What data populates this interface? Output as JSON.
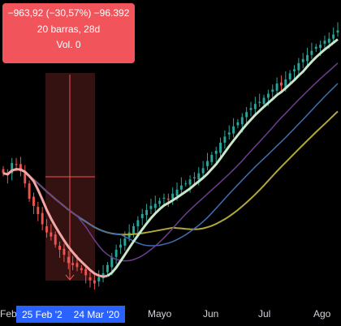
{
  "measure": {
    "line1": "−963,92 (−30,57%) −96.392",
    "line2": "20 barras, 28d",
    "line3": "Vol. 0"
  },
  "x_axis": {
    "labels": [
      "Feb",
      "Mayo",
      "Jun",
      "Jul",
      "Ago"
    ],
    "range_start": "25 Feb '2",
    "range_end": "24 Mar '20"
  },
  "colors": {
    "background": "#000000",
    "up": "#26a69a",
    "down": "#ef5350",
    "ma_fast": "#f3a6a6",
    "ma_fast_recovery": "#c8e6c9",
    "ma_slow_olive": "#b0a83a",
    "ma_blue": "#3f6fb5",
    "ma_purple": "#6b3f8f",
    "measure_box": "#f2545b",
    "range_badge": "#2962ff"
  },
  "chart_data": {
    "type": "candlestick",
    "x_range": [
      "2020-02",
      "2020-08"
    ],
    "measurement": {
      "change": -963.92,
      "percent": -30.57,
      "bars": 20,
      "days": 28,
      "volume": 0
    },
    "close_series": [
      150,
      148,
      160,
      158,
      152,
      140,
      125,
      118,
      110,
      100,
      92,
      88,
      80,
      75,
      70,
      62,
      60,
      58,
      55,
      50,
      45,
      42,
      48,
      52,
      60,
      68,
      75,
      80,
      86,
      92,
      98,
      104,
      110,
      114,
      118,
      120,
      123,
      126,
      124,
      130,
      134,
      138,
      140,
      144,
      146,
      150,
      155,
      162,
      168,
      172,
      180,
      186,
      190,
      196,
      200,
      205,
      210,
      214,
      218,
      220,
      224,
      228,
      232,
      238,
      236,
      242,
      248,
      252,
      258,
      262,
      266,
      270,
      274,
      276,
      280,
      282,
      286,
      290
    ]
  }
}
